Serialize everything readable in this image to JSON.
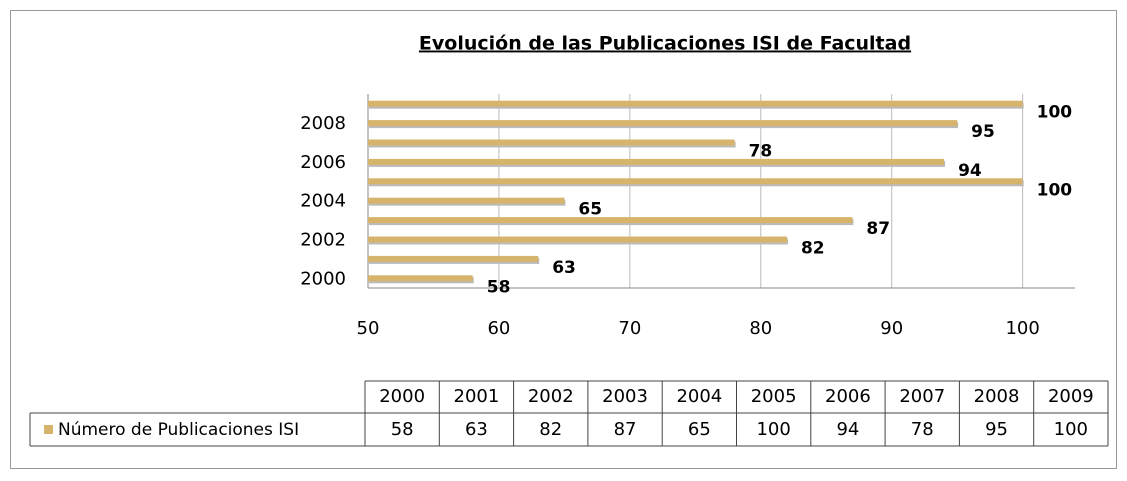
{
  "chart_data": {
    "type": "hbar",
    "title": "Evolución de las Publicaciones ISI de Facultad",
    "categories": [
      "2000",
      "2001",
      "2002",
      "2003",
      "2004",
      "2005",
      "2006",
      "2007",
      "2008",
      "2009"
    ],
    "series": [
      {
        "name": "Número de Publicaciones ISI",
        "color": "#d6b46c",
        "values": [
          58,
          63,
          82,
          87,
          65,
          100,
          94,
          78,
          95,
          100
        ]
      }
    ],
    "xlim": [
      50,
      104
    ],
    "xticks": [
      50,
      60,
      70,
      80,
      90,
      100
    ],
    "grid": true,
    "data_table": true
  }
}
